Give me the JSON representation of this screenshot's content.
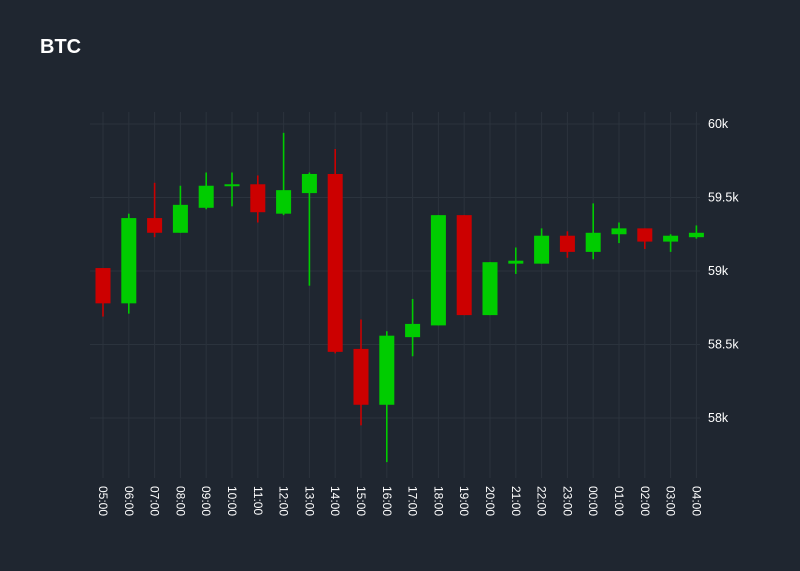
{
  "chart_data": {
    "type": "candlestick",
    "title": "BTC",
    "y_ticks": [
      {
        "value": 60000,
        "label": "60k"
      },
      {
        "value": 59500,
        "label": "59.5k"
      },
      {
        "value": 59000,
        "label": "59k"
      },
      {
        "value": 58500,
        "label": "58.5k"
      },
      {
        "value": 58000,
        "label": "58k"
      }
    ],
    "ylim": [
      57600,
      60050
    ],
    "y_axis_side": "right",
    "x_label_rotation": "vertical",
    "grid": true,
    "colors": {
      "background": "#1f2630",
      "grid": "#2b333d",
      "up": "#00cc00",
      "down": "#cc0000",
      "text": "#ffffff"
    },
    "candles": [
      {
        "time": "05:00",
        "open": 59020,
        "high": 59020,
        "low": 58690,
        "close": 58780
      },
      {
        "time": "06:00",
        "open": 58780,
        "high": 59390,
        "low": 58710,
        "close": 59360
      },
      {
        "time": "07:00",
        "open": 59360,
        "high": 59600,
        "low": 59230,
        "close": 59260
      },
      {
        "time": "08:00",
        "open": 59260,
        "high": 59580,
        "low": 59260,
        "close": 59450
      },
      {
        "time": "09:00",
        "open": 59430,
        "high": 59670,
        "low": 59420,
        "close": 59580
      },
      {
        "time": "10:00",
        "open": 59580,
        "high": 59670,
        "low": 59440,
        "close": 59590
      },
      {
        "time": "11:00",
        "open": 59590,
        "high": 59650,
        "low": 59330,
        "close": 59400
      },
      {
        "time": "12:00",
        "open": 59390,
        "high": 59940,
        "low": 59380,
        "close": 59550
      },
      {
        "time": "13:00",
        "open": 59530,
        "high": 59670,
        "low": 58900,
        "close": 59660
      },
      {
        "time": "14:00",
        "open": 59660,
        "high": 59830,
        "low": 58440,
        "close": 58450
      },
      {
        "time": "15:00",
        "open": 58470,
        "high": 58670,
        "low": 57950,
        "close": 58090
      },
      {
        "time": "16:00",
        "open": 58090,
        "high": 58590,
        "low": 57700,
        "close": 58560
      },
      {
        "time": "17:00",
        "open": 58550,
        "high": 58810,
        "low": 58420,
        "close": 58640
      },
      {
        "time": "18:00",
        "open": 58630,
        "high": 59380,
        "low": 58630,
        "close": 59380
      },
      {
        "time": "19:00",
        "open": 59380,
        "high": 59380,
        "low": 58700,
        "close": 58700
      },
      {
        "time": "20:00",
        "open": 58700,
        "high": 59060,
        "low": 58700,
        "close": 59060
      },
      {
        "time": "21:00",
        "open": 59050,
        "high": 59160,
        "low": 58980,
        "close": 59070
      },
      {
        "time": "22:00",
        "open": 59050,
        "high": 59290,
        "low": 59050,
        "close": 59240
      },
      {
        "time": "23:00",
        "open": 59240,
        "high": 59270,
        "low": 59090,
        "close": 59130
      },
      {
        "time": "00:00",
        "open": 59130,
        "high": 59460,
        "low": 59080,
        "close": 59260
      },
      {
        "time": "01:00",
        "open": 59250,
        "high": 59330,
        "low": 59190,
        "close": 59290
      },
      {
        "time": "02:00",
        "open": 59290,
        "high": 59290,
        "low": 59150,
        "close": 59200
      },
      {
        "time": "03:00",
        "open": 59200,
        "high": 59250,
        "low": 59130,
        "close": 59240
      },
      {
        "time": "04:00",
        "open": 59230,
        "high": 59310,
        "low": 59220,
        "close": 59260
      }
    ]
  }
}
